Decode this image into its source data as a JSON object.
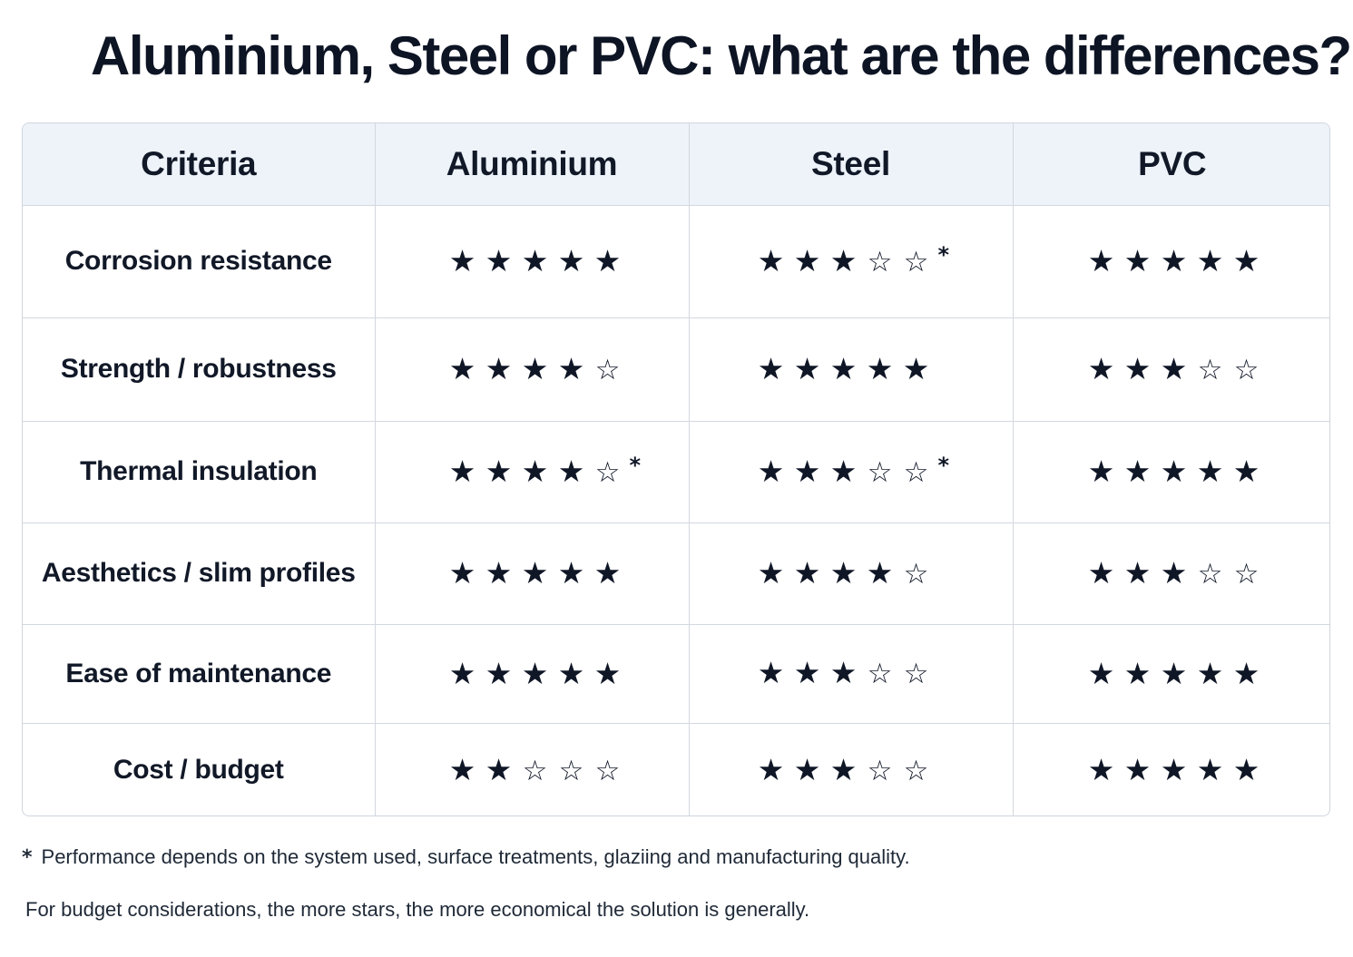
{
  "title": "Aluminium, Steel or PVC: what are the differences?",
  "table": {
    "headers": [
      "Criteria",
      "Aluminium",
      "Steel",
      "PVC"
    ],
    "max_stars": 5,
    "star_glyphs": {
      "filled": "★",
      "empty": "☆"
    },
    "asterisk": "*",
    "rows": [
      {
        "criteria": "Corrosion resistance",
        "ratings": [
          {
            "stars": 5,
            "asterisk": false
          },
          {
            "stars": 3,
            "asterisk": true
          },
          {
            "stars": 5,
            "asterisk": false
          }
        ]
      },
      {
        "criteria": "Strength / robustness",
        "ratings": [
          {
            "stars": 4,
            "asterisk": false
          },
          {
            "stars": 5,
            "asterisk": false
          },
          {
            "stars": 3,
            "asterisk": false
          }
        ]
      },
      {
        "criteria": "Thermal insulation",
        "ratings": [
          {
            "stars": 4,
            "asterisk": true
          },
          {
            "stars": 3,
            "asterisk": true
          },
          {
            "stars": 5,
            "asterisk": false
          }
        ]
      },
      {
        "criteria": "Aesthetics / slim profiles",
        "ratings": [
          {
            "stars": 5,
            "asterisk": false
          },
          {
            "stars": 4,
            "asterisk": false
          },
          {
            "stars": 3,
            "asterisk": false
          }
        ]
      },
      {
        "criteria": "Ease of maintenance",
        "ratings": [
          {
            "stars": 5,
            "asterisk": false
          },
          {
            "stars": 3,
            "asterisk": false
          },
          {
            "stars": 5,
            "asterisk": false
          }
        ]
      },
      {
        "criteria": "Cost / budget",
        "ratings": [
          {
            "stars": 2,
            "asterisk": false
          },
          {
            "stars": 3,
            "asterisk": false
          },
          {
            "stars": 5,
            "asterisk": false
          }
        ]
      }
    ]
  },
  "footnote": {
    "mark": "*",
    "text": "Performance depends on the system used, surface treatments, glaziing and manufacturing quality."
  },
  "note": "For budget considerations, the more stars, the more economical the solution is generally."
}
